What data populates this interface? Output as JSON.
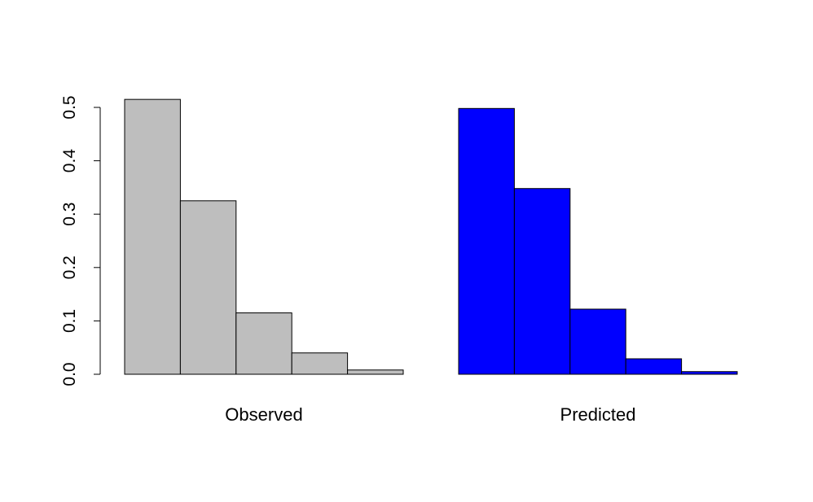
{
  "chart_data": {
    "type": "bar",
    "ylim": [
      0,
      0.5
    ],
    "yticks": [
      "0.0",
      "0.1",
      "0.2",
      "0.3",
      "0.4",
      "0.5"
    ],
    "grid": false,
    "legend": "none",
    "series": [
      {
        "label": "Observed",
        "color": "#bebebe",
        "values": [
          0.515,
          0.325,
          0.115,
          0.04,
          0.008
        ]
      },
      {
        "label": "Predicted",
        "color": "#0000ff",
        "values": [
          0.498,
          0.348,
          0.122,
          0.029,
          0.005
        ]
      }
    ]
  }
}
